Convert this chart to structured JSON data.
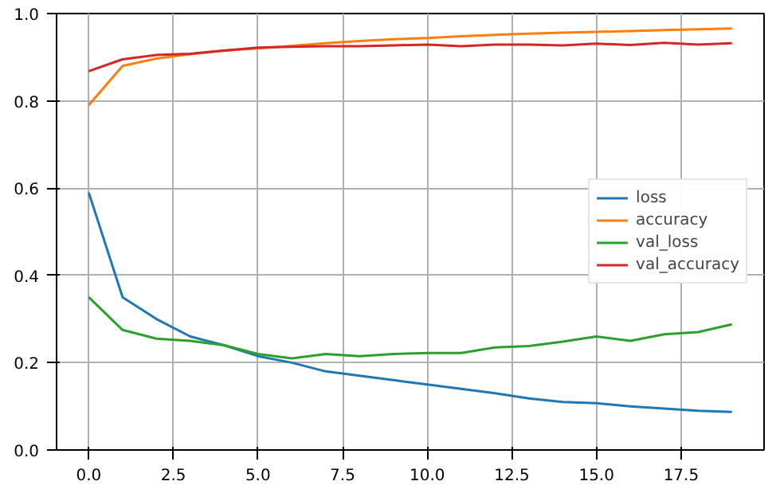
{
  "chart_data": {
    "type": "line",
    "x": [
      0,
      1,
      2,
      3,
      4,
      5,
      6,
      7,
      8,
      9,
      10,
      11,
      12,
      13,
      14,
      15,
      16,
      17,
      18,
      19
    ],
    "series": [
      {
        "name": "loss",
        "color": "#1f77b4",
        "values": [
          0.59,
          0.35,
          0.3,
          0.26,
          0.24,
          0.215,
          0.2,
          0.18,
          0.17,
          0.16,
          0.15,
          0.14,
          0.13,
          0.118,
          0.11,
          0.107,
          0.1,
          0.095,
          0.09,
          0.087
        ]
      },
      {
        "name": "accuracy",
        "color": "#ff7f0e",
        "values": [
          0.79,
          0.88,
          0.897,
          0.907,
          0.915,
          0.92,
          0.926,
          0.932,
          0.937,
          0.941,
          0.944,
          0.948,
          0.951,
          0.954,
          0.956,
          0.958,
          0.96,
          0.962,
          0.964,
          0.966
        ]
      },
      {
        "name": "val_loss",
        "color": "#2ca02c",
        "values": [
          0.35,
          0.275,
          0.255,
          0.25,
          0.24,
          0.22,
          0.21,
          0.22,
          0.215,
          0.22,
          0.222,
          0.222,
          0.235,
          0.238,
          0.248,
          0.26,
          0.25,
          0.265,
          0.27,
          0.288
        ]
      },
      {
        "name": "val_accuracy",
        "color": "#d62728",
        "values": [
          0.868,
          0.895,
          0.905,
          0.908,
          0.915,
          0.922,
          0.924,
          0.925,
          0.925,
          0.927,
          0.929,
          0.925,
          0.929,
          0.929,
          0.927,
          0.931,
          0.928,
          0.933,
          0.929,
          0.932
        ]
      }
    ],
    "xlim": [
      -0.95,
      19.95
    ],
    "ylim": [
      0,
      1
    ],
    "xticks": [
      {
        "value": 0,
        "label": "0.0"
      },
      {
        "value": 2.5,
        "label": "2.5"
      },
      {
        "value": 5,
        "label": "5.0"
      },
      {
        "value": 7.5,
        "label": "7.5"
      },
      {
        "value": 10,
        "label": "10.0"
      },
      {
        "value": 12.5,
        "label": "12.5"
      },
      {
        "value": 15,
        "label": "15.0"
      },
      {
        "value": 17.5,
        "label": "17.5"
      }
    ],
    "yticks": [
      {
        "value": 0,
        "label": "0.0"
      },
      {
        "value": 0.2,
        "label": "0.2"
      },
      {
        "value": 0.4,
        "label": "0.4"
      },
      {
        "value": 0.6,
        "label": "0.6"
      },
      {
        "value": 0.8,
        "label": "0.8"
      },
      {
        "value": 1,
        "label": "1.0"
      }
    ],
    "grid": true,
    "legend": "right",
    "marker": "none",
    "line_style": "solid"
  }
}
